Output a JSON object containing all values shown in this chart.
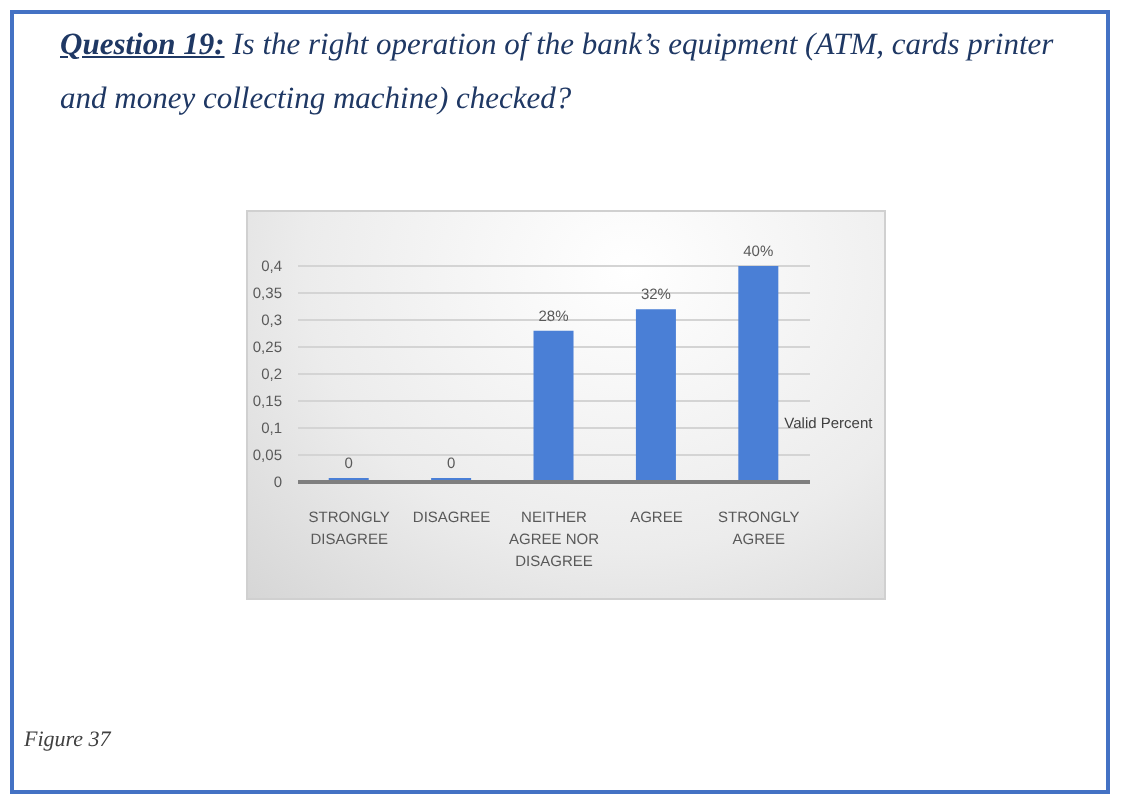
{
  "chart_data": {
    "type": "bar",
    "title": "Question 19: Is the right operation of the bank’s equipment (ATM, cards printer and money collecting machine) checked?",
    "categories": [
      "STRONGLY DISAGREE",
      "DISAGREE",
      "NEITHER AGREE NOR DISAGREE",
      "AGREE",
      "STRONGLY AGREE"
    ],
    "series": [
      {
        "name": "Valid Percent",
        "color": "#4a7fd6",
        "values": [
          0,
          0,
          0.28,
          0.32,
          0.4
        ],
        "value_labels": [
          "0",
          "0",
          "28%",
          "32%",
          "40%"
        ]
      }
    ],
    "ylim": [
      0,
      0.4
    ],
    "yticks": [
      0,
      {
        "value": 0.05,
        "label": "0,05"
      },
      {
        "value": 0.1,
        "label": "0,1"
      },
      {
        "value": 0.15,
        "label": "0,15"
      },
      {
        "value": 0.2,
        "label": "0,2"
      },
      {
        "value": 0.25,
        "label": "0,25"
      },
      {
        "value": 0.3,
        "label": "0,3"
      },
      {
        "value": 0.35,
        "label": "0,35"
      },
      {
        "value": 0.4,
        "label": "0,4"
      }
    ],
    "grid": "y",
    "annotations": [
      "Figure 37"
    ]
  }
}
